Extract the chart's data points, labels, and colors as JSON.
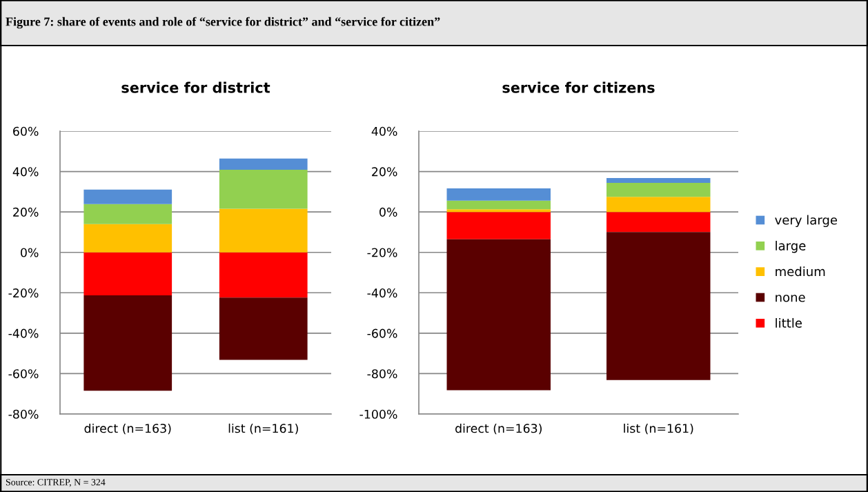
{
  "chart_data": [
    {
      "type": "bar",
      "title": "service for district",
      "stacked": true,
      "grid": "y",
      "annotations": [
        "Figure 7: share of events and role of “service for district” and “service for citizen”",
        "Source: CITREP, N = 324"
      ],
      "categories": [
        "direct (n=163)",
        "list (n=161)"
      ],
      "ylim": [
        -80,
        60
      ],
      "yticks": [
        {
          "value": -80,
          "label": "-80%"
        },
        {
          "value": -60,
          "label": "-60%"
        },
        {
          "value": -40,
          "label": "-40%"
        },
        {
          "value": -20,
          "label": "-20%"
        },
        {
          "value": 0,
          "label": "0%"
        },
        {
          "value": 20,
          "label": "20%"
        },
        {
          "value": 40,
          "label": "40%"
        },
        {
          "value": 60,
          "label": "60%"
        }
      ],
      "series": [
        {
          "color": "#ff0000",
          "values": [
            -21.3,
            -22.4
          ]
        },
        {
          "color": "#5a0000",
          "values": [
            -47.2,
            -30.8
          ]
        },
        {
          "color": "#ffc000",
          "values": [
            14.0,
            21.6
          ]
        },
        {
          "color": "#92d050",
          "values": [
            9.9,
            19.3
          ]
        },
        {
          "color": "#558ed5",
          "values": [
            7.2,
            5.5
          ]
        }
      ]
    },
    {
      "type": "bar",
      "title": "service for citizens",
      "stacked": true,
      "grid": "y",
      "legend": "right",
      "categories": [
        "direct (n=163)",
        "list (n=161)"
      ],
      "ylim": [
        -100,
        40
      ],
      "yticks": [
        {
          "value": -100,
          "label": "-100%"
        },
        {
          "value": -80,
          "label": "-80%"
        },
        {
          "value": -60,
          "label": "-60%"
        },
        {
          "value": -40,
          "label": "-40%"
        },
        {
          "value": -20,
          "label": "-20%"
        },
        {
          "value": 0,
          "label": "0%"
        },
        {
          "value": 20,
          "label": "20%"
        },
        {
          "value": 40,
          "label": "40%"
        }
      ],
      "series": [
        {
          "name": "little",
          "color": "#ff0000",
          "values": [
            -13.5,
            -9.9
          ]
        },
        {
          "name": "none",
          "color": "#5a0000",
          "values": [
            -74.7,
            -73.3
          ]
        },
        {
          "name": "medium",
          "color": "#ffc000",
          "values": [
            1.3,
            7.5
          ]
        },
        {
          "name": "large",
          "color": "#92d050",
          "values": [
            4.3,
            6.9
          ]
        },
        {
          "name": "very large",
          "color": "#558ed5",
          "values": [
            6.1,
            2.4
          ]
        }
      ]
    }
  ]
}
